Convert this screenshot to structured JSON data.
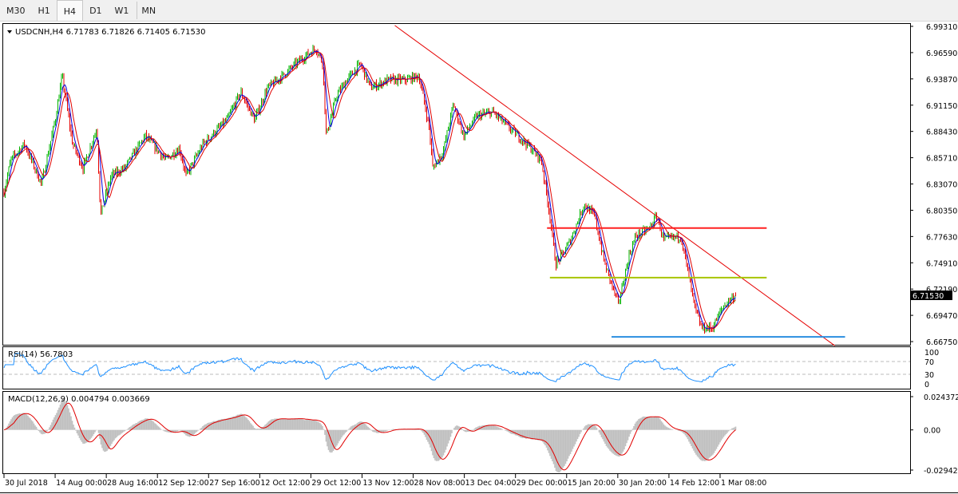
{
  "timeframe_tabs": [
    "M30",
    "H1",
    "H4",
    "D1",
    "W1",
    "MN"
  ],
  "active_tab": "H4",
  "chart_data": [
    {
      "type": "candlestick",
      "title": "USDCNH,H4  6.71783 6.71826 6.71405 6.71530",
      "symbol": "USDCNH",
      "timeframe": "H4",
      "ohlc_last": {
        "open": 6.71783,
        "high": 6.71826,
        "low": 6.71405,
        "close": 6.7153
      },
      "current_price_label": "6.71530",
      "y_ticks": [
        "6.99310",
        "6.96590",
        "6.93870",
        "6.91150",
        "6.88430",
        "6.85710",
        "6.83070",
        "6.80350",
        "6.77630",
        "6.74910",
        "6.72190",
        "6.69470",
        "6.66750"
      ],
      "ylim": [
        6.6675,
        6.9931
      ],
      "x_ticks": [
        "30 Jul 2018",
        "14 Aug 00:00",
        "28 Aug 16:00",
        "12 Sep 12:00",
        "27 Sep 16:00",
        "12 Oct 12:00",
        "29 Oct 12:00",
        "13 Nov 12:00",
        "28 Nov 08:00",
        "13 Dec 04:00",
        "29 Dec 00:00",
        "15 Jan 20:00",
        "30 Jan 20:00",
        "14 Feb 12:00",
        "1 Mar 08:00"
      ],
      "approx_close_path": [
        [
          "2018-07-30",
          6.822
        ],
        [
          "2018-08-01",
          6.855
        ],
        [
          "2018-08-05",
          6.8716
        ],
        [
          "2018-08-10",
          6.8302
        ],
        [
          "2018-08-14",
          6.8964
        ],
        [
          "2018-08-16",
          6.9418
        ],
        [
          "2018-08-19",
          6.8716
        ],
        [
          "2018-08-22",
          6.8468
        ],
        [
          "2018-08-26",
          6.8881
        ],
        [
          "2018-08-27",
          6.7972
        ],
        [
          "2018-08-30",
          6.8385
        ],
        [
          "2018-09-03",
          6.8468
        ],
        [
          "2018-09-09",
          6.8798
        ],
        [
          "2018-09-15",
          6.855
        ],
        [
          "2018-09-19",
          6.8674
        ],
        [
          "2018-09-21",
          6.8385
        ],
        [
          "2018-09-26",
          6.8716
        ],
        [
          "2018-10-03",
          6.8964
        ],
        [
          "2018-10-07",
          6.9253
        ],
        [
          "2018-10-11",
          6.8964
        ],
        [
          "2018-10-15",
          6.9294
        ],
        [
          "2018-10-20",
          6.9418
        ],
        [
          "2018-10-26",
          6.9584
        ],
        [
          "2018-10-31",
          6.9708
        ],
        [
          "2018-11-02",
          6.9542
        ],
        [
          "2018-11-03",
          6.8798
        ],
        [
          "2018-11-06",
          6.9212
        ],
        [
          "2018-11-09",
          6.9377
        ],
        [
          "2018-11-13",
          6.9542
        ],
        [
          "2018-11-16",
          6.9294
        ],
        [
          "2018-11-21",
          6.9377
        ],
        [
          "2018-11-26",
          6.9377
        ],
        [
          "2018-11-30",
          6.9418
        ],
        [
          "2018-12-03",
          6.8881
        ],
        [
          "2018-12-04",
          6.8468
        ],
        [
          "2018-12-07",
          6.8633
        ],
        [
          "2018-12-10",
          6.9129
        ],
        [
          "2018-12-13",
          6.8798
        ],
        [
          "2018-12-17",
          6.9005
        ],
        [
          "2018-12-22",
          6.9046
        ],
        [
          "2018-12-27",
          6.8881
        ],
        [
          "2019-01-02",
          6.8716
        ],
        [
          "2019-01-07",
          6.855
        ],
        [
          "2019-01-10",
          6.7972
        ],
        [
          "2019-01-12",
          6.7476
        ],
        [
          "2019-01-14",
          6.7558
        ],
        [
          "2019-01-17",
          6.7724
        ],
        [
          "2019-01-21",
          6.8096
        ],
        [
          "2019-01-24",
          6.7972
        ],
        [
          "2019-01-27",
          6.7476
        ],
        [
          "2019-01-31",
          6.7062
        ],
        [
          "2019-02-03",
          6.7558
        ],
        [
          "2019-02-05",
          6.7765
        ],
        [
          "2019-02-09",
          6.7848
        ],
        [
          "2019-02-11",
          6.7972
        ],
        [
          "2019-02-13",
          6.7724
        ],
        [
          "2019-02-18",
          6.7765
        ],
        [
          "2019-02-20",
          6.7393
        ],
        [
          "2019-02-22",
          6.7021
        ],
        [
          "2019-02-24",
          6.6814
        ],
        [
          "2019-02-27",
          6.6814
        ],
        [
          "2019-03-02",
          6.7021
        ],
        [
          "2019-03-04",
          6.7104
        ],
        [
          "2019-03-06",
          6.7153
        ]
      ],
      "up_color": "#00b400",
      "down_color": "#e60000",
      "moving_average_colors": [
        "#0000e0",
        "#e00000"
      ],
      "drawn_lines": [
        {
          "kind": "trendline",
          "color": "#e60000",
          "from": [
            "2018-11-23",
            6.994
          ],
          "to": [
            "2019-04-04",
            6.6632
          ]
        },
        {
          "kind": "horizontal",
          "color": "#ff2020",
          "price": 6.7848,
          "from": "2019-01-09",
          "to": "2019-03-15"
        },
        {
          "kind": "horizontal",
          "color": "#a8c400",
          "price": 6.7335,
          "from": "2019-01-10",
          "to": "2019-03-15"
        },
        {
          "kind": "horizontal",
          "color": "#2a8ee0",
          "price": 6.6723,
          "from": "2019-01-29",
          "to": "2019-04-07"
        }
      ]
    },
    {
      "type": "line",
      "title": "RSI(14) 56.7803",
      "y_ticks": [
        "100",
        "70",
        "30",
        "0"
      ],
      "ylim": [
        0,
        100
      ],
      "levels": [
        70,
        30
      ],
      "color": "#1e90ff"
    },
    {
      "type": "bar",
      "title": "MACD(12,26,9) 0.004794 0.003669",
      "y_ticks": [
        "0.024372",
        "0.00",
        "-0.029423"
      ],
      "ylim": [
        -0.029423,
        0.024372
      ],
      "histogram_color": "#c0c0c0",
      "signal_color": "#e00000"
    }
  ]
}
